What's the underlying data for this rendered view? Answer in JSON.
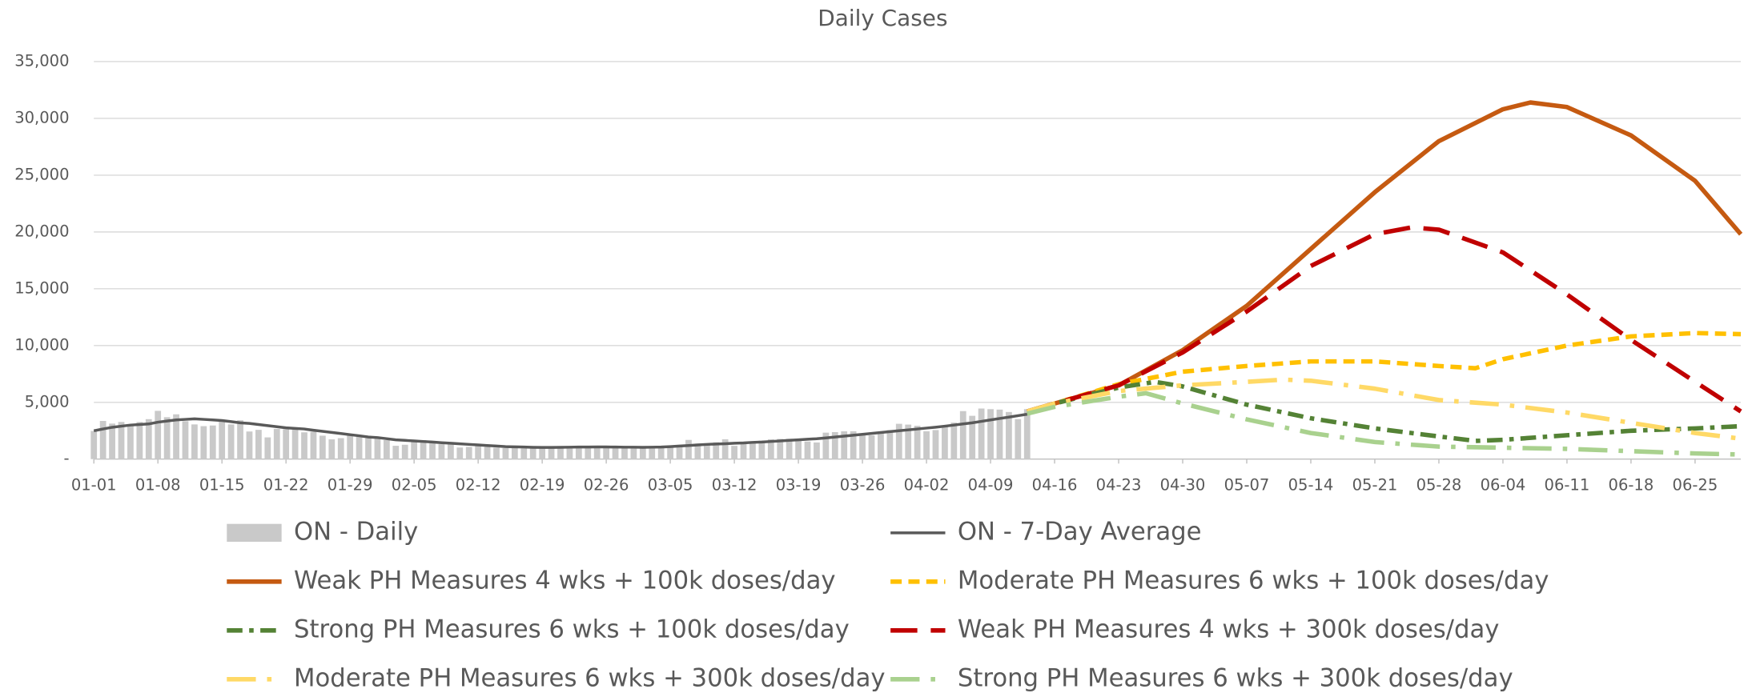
{
  "chart_data": {
    "type": "line",
    "title": "Daily Cases",
    "xlim": [
      0,
      180
    ],
    "xticks": [
      {
        "value": 0,
        "label": "01-01"
      },
      {
        "value": 7,
        "label": "01-08"
      },
      {
        "value": 14,
        "label": "01-15"
      },
      {
        "value": 21,
        "label": "01-22"
      },
      {
        "value": 28,
        "label": "01-29"
      },
      {
        "value": 35,
        "label": "02-05"
      },
      {
        "value": 42,
        "label": "02-12"
      },
      {
        "value": 49,
        "label": "02-19"
      },
      {
        "value": 56,
        "label": "02-26"
      },
      {
        "value": 63,
        "label": "03-05"
      },
      {
        "value": 70,
        "label": "03-12"
      },
      {
        "value": 77,
        "label": "03-19"
      },
      {
        "value": 84,
        "label": "03-26"
      },
      {
        "value": 91,
        "label": "04-02"
      },
      {
        "value": 98,
        "label": "04-09"
      },
      {
        "value": 105,
        "label": "04-16"
      },
      {
        "value": 112,
        "label": "04-23"
      },
      {
        "value": 119,
        "label": "04-30"
      },
      {
        "value": 126,
        "label": "05-07"
      },
      {
        "value": 133,
        "label": "05-14"
      },
      {
        "value": 140,
        "label": "05-21"
      },
      {
        "value": 147,
        "label": "05-28"
      },
      {
        "value": 154,
        "label": "06-04"
      },
      {
        "value": 161,
        "label": "06-11"
      },
      {
        "value": 168,
        "label": "06-18"
      },
      {
        "value": 175,
        "label": "06-25"
      }
    ],
    "ylim": [
      0,
      35000
    ],
    "yticks": [
      {
        "value": 0,
        "label": "-"
      },
      {
        "value": 5000,
        "label": "5,000"
      },
      {
        "value": 10000,
        "label": "10,000"
      },
      {
        "value": 15000,
        "label": "15,000"
      },
      {
        "value": 20000,
        "label": "20,000"
      },
      {
        "value": 25000,
        "label": "25,000"
      },
      {
        "value": 30000,
        "label": "30,000"
      },
      {
        "value": 35000,
        "label": "35,000"
      }
    ],
    "grid": true,
    "legend": "bottom",
    "series": [
      {
        "name": "ON - Daily",
        "kind": "bar",
        "color": "#c9c9c9",
        "x": [
          0,
          1,
          2,
          3,
          4,
          5,
          6,
          7,
          8,
          9,
          10,
          11,
          12,
          13,
          14,
          15,
          16,
          17,
          18,
          19,
          20,
          21,
          22,
          23,
          24,
          25,
          26,
          27,
          28,
          29,
          30,
          31,
          32,
          33,
          34,
          35,
          36,
          37,
          38,
          39,
          40,
          41,
          42,
          43,
          44,
          45,
          46,
          47,
          48,
          49,
          50,
          51,
          52,
          53,
          54,
          55,
          56,
          57,
          58,
          59,
          60,
          61,
          62,
          63,
          64,
          65,
          66,
          67,
          68,
          69,
          70,
          71,
          72,
          73,
          74,
          75,
          76,
          77,
          78,
          79,
          80,
          81,
          82,
          83,
          84,
          85,
          86,
          87,
          88,
          89,
          90,
          91,
          92,
          93,
          94,
          95,
          96,
          97,
          98,
          99,
          100,
          101,
          102
        ],
        "values": [
          2476,
          3363,
          3128,
          3270,
          2964,
          3266,
          3519,
          4249,
          3690,
          3945,
          3338,
          3056,
          2903,
          2961,
          3326,
          3056,
          3422,
          2432,
          2578,
          1913,
          2655,
          2632,
          2662,
          2359,
          2417,
          2063,
          1740,
          1849,
          2093,
          1969,
          1837,
          1848,
          1670,
          1172,
          1265,
          1563,
          1670,
          1388,
          1310,
          1489,
          1022,
          1076,
          1162,
          1076,
          1005,
          966,
          981,
          940,
          1033,
          1054,
          1087,
          1128,
          970,
          965,
          1054,
          1087,
          1156,
          1150,
          990,
          957,
          1071,
          962,
          1131,
          1062,
          1250,
          1692,
          1370,
          1316,
          1480,
          1747,
          1168,
          1353,
          1509,
          1621,
          1748,
          1777,
          1791,
          1690,
          1547,
          1468,
          2330,
          2380,
          2448,
          2453,
          2169,
          2094,
          2336,
          2557,
          3111,
          3041,
          2938,
          2453,
          2557,
          2938,
          3215,
          4227,
          3813,
          4456,
          4401,
          4362,
          4150,
          3519,
          4401
        ]
      },
      {
        "name": "ON - 7-Day Average",
        "kind": "line",
        "style": "solid",
        "color": "#595959",
        "x": [
          0,
          1,
          2,
          3,
          4,
          5,
          6,
          7,
          8,
          9,
          10,
          11,
          12,
          13,
          14,
          15,
          16,
          17,
          18,
          19,
          20,
          21,
          22,
          23,
          24,
          25,
          26,
          27,
          28,
          29,
          30,
          31,
          32,
          33,
          34,
          35,
          36,
          37,
          38,
          39,
          40,
          41,
          42,
          43,
          44,
          45,
          46,
          47,
          48,
          49,
          50,
          51,
          52,
          53,
          54,
          55,
          56,
          57,
          58,
          59,
          60,
          61,
          62,
          63,
          64,
          65,
          66,
          67,
          68,
          69,
          70,
          71,
          72,
          73,
          74,
          75,
          76,
          77,
          78,
          79,
          80,
          81,
          82,
          83,
          84,
          85,
          86,
          87,
          88,
          89,
          90,
          91,
          92,
          93,
          94,
          95,
          96,
          97,
          98,
          99,
          100,
          101,
          102
        ],
        "values": [
          2500,
          2650,
          2800,
          2900,
          3000,
          3050,
          3100,
          3250,
          3350,
          3450,
          3500,
          3550,
          3500,
          3450,
          3400,
          3300,
          3200,
          3150,
          3050,
          2950,
          2850,
          2750,
          2700,
          2650,
          2550,
          2450,
          2350,
          2250,
          2150,
          2050,
          1950,
          1900,
          1800,
          1700,
          1650,
          1600,
          1550,
          1500,
          1450,
          1400,
          1350,
          1300,
          1250,
          1200,
          1150,
          1100,
          1080,
          1060,
          1040,
          1030,
          1030,
          1040,
          1050,
          1060,
          1060,
          1070,
          1070,
          1060,
          1050,
          1050,
          1040,
          1050,
          1060,
          1100,
          1150,
          1200,
          1250,
          1300,
          1330,
          1360,
          1400,
          1430,
          1470,
          1500,
          1550,
          1600,
          1650,
          1700,
          1750,
          1800,
          1870,
          1950,
          2030,
          2100,
          2180,
          2260,
          2340,
          2420,
          2500,
          2580,
          2650,
          2730,
          2810,
          2900,
          3000,
          3100,
          3200,
          3320,
          3450,
          3580,
          3700,
          3820,
          3950
        ]
      },
      {
        "name": "Weak PH Measures 4 wks + 100k doses/day",
        "kind": "line",
        "style": "solid",
        "color": "#c55a11",
        "x": [
          102,
          105,
          112,
          119,
          126,
          133,
          140,
          147,
          154,
          157,
          161,
          168,
          175,
          180
        ],
        "values": [
          4200,
          4900,
          6500,
          9600,
          13500,
          18500,
          23500,
          28000,
          30800,
          31400,
          31000,
          28500,
          24500,
          19800
        ]
      },
      {
        "name": "Moderate PH Measures 6 wks + 100k doses/day",
        "kind": "line",
        "style": "dash",
        "color": "#ffc000",
        "x": [
          102,
          105,
          112,
          119,
          126,
          133,
          140,
          147,
          151,
          154,
          161,
          168,
          175,
          180
        ],
        "values": [
          4200,
          4900,
          6600,
          7700,
          8200,
          8600,
          8600,
          8200,
          8000,
          8800,
          10000,
          10800,
          11100,
          11000
        ]
      },
      {
        "name": "Strong PH Measures 6 wks + 100k doses/day",
        "kind": "line",
        "style": "dash-dot",
        "color": "#548235",
        "x": [
          102,
          105,
          112,
          116,
          119,
          126,
          133,
          140,
          147,
          151,
          154,
          161,
          168,
          175,
          180
        ],
        "values": [
          4200,
          4900,
          6300,
          6800,
          6400,
          4800,
          3600,
          2700,
          2000,
          1600,
          1700,
          2100,
          2500,
          2700,
          2900
        ]
      },
      {
        "name": "Weak PH Measures 4 wks + 300k doses/day",
        "kind": "line",
        "style": "long-dash",
        "color": "#c00000",
        "x": [
          102,
          105,
          112,
          119,
          126,
          133,
          140,
          144,
          147,
          154,
          161,
          168,
          175,
          180
        ],
        "values": [
          4200,
          4900,
          6500,
          9400,
          13000,
          17000,
          19800,
          20400,
          20200,
          18200,
          14500,
          10500,
          6800,
          4200
        ]
      },
      {
        "name": "Moderate PH Measures 6 wks + 300k doses/day",
        "kind": "line",
        "style": "long-dash-dot",
        "color": "#ffd966",
        "x": [
          102,
          105,
          112,
          119,
          126,
          130,
          133,
          140,
          147,
          154,
          161,
          168,
          175,
          180
        ],
        "values": [
          4200,
          4900,
          6000,
          6500,
          6800,
          7000,
          6900,
          6200,
          5200,
          4800,
          4100,
          3200,
          2300,
          1800
        ]
      },
      {
        "name": "Strong PH Measures 6 wks + 300k doses/day",
        "kind": "line",
        "style": "long-dash-dot",
        "color": "#a9d18e",
        "x": [
          102,
          105,
          112,
          115,
          119,
          126,
          133,
          140,
          147,
          154,
          161,
          168,
          175,
          180
        ],
        "values": [
          4000,
          4600,
          5500,
          5800,
          4900,
          3500,
          2300,
          1500,
          1100,
          1000,
          900,
          700,
          500,
          400
        ]
      }
    ]
  }
}
